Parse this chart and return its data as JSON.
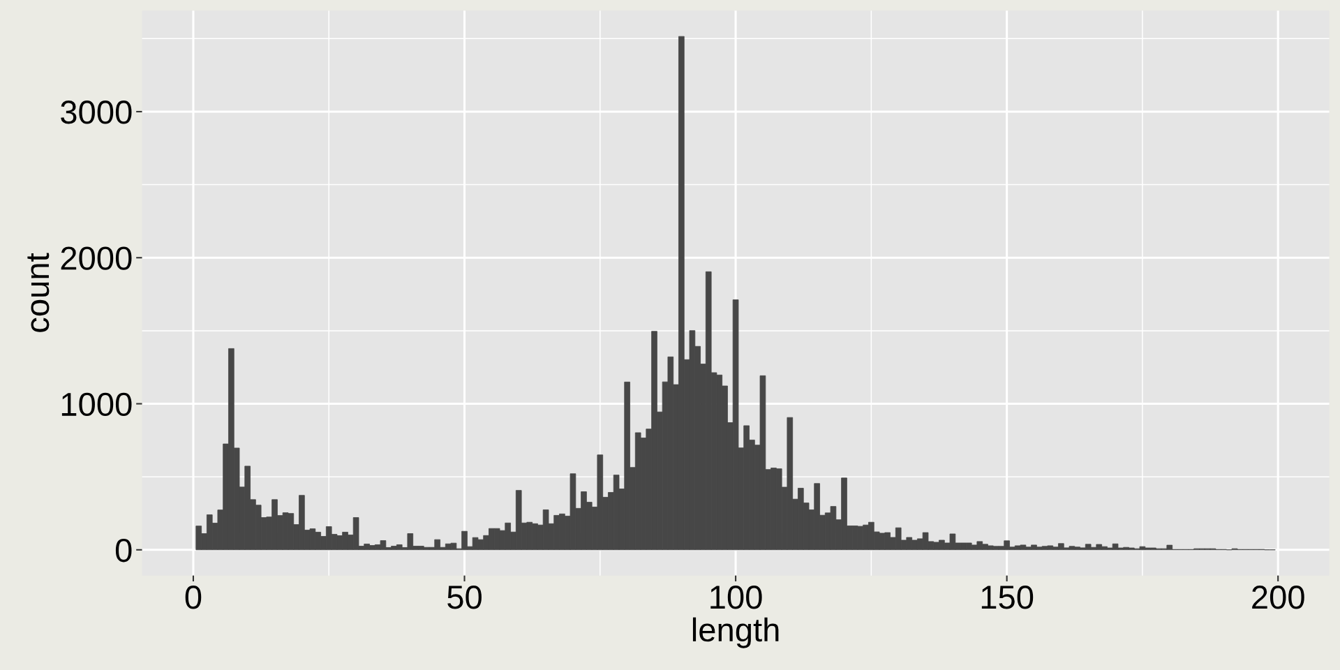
{
  "chart_data": {
    "type": "histogram",
    "xlabel": "length",
    "ylabel": "count",
    "color": "#474747",
    "bins": [
      0.5,
      1.5,
      2.5,
      3.5,
      4.5,
      5.5,
      6.5,
      7.5,
      8.5,
      9.5,
      10.5,
      11.5,
      12.5,
      13.5,
      14.5,
      15.5,
      16.5,
      17.5,
      18.5,
      19.5,
      20.5,
      21.5,
      22.5,
      23.5,
      24.5,
      25.5,
      26.5,
      27.5,
      28.5,
      29.5,
      30.5,
      31.5,
      32.5,
      33.5,
      34.5,
      35.5,
      36.5,
      37.5,
      38.5,
      39.5,
      40.5,
      41.5,
      42.5,
      43.5,
      44.5,
      45.5,
      46.5,
      47.5,
      48.5,
      49.5,
      50.5,
      51.5,
      52.5,
      53.5,
      54.5,
      55.5,
      56.5,
      57.5,
      58.5,
      59.5,
      60.5,
      61.5,
      62.5,
      63.5,
      64.5,
      65.5,
      66.5,
      67.5,
      68.5,
      69.5,
      70.5,
      71.5,
      72.5,
      73.5,
      74.5,
      75.5,
      76.5,
      77.5,
      78.5,
      79.5,
      80.5,
      81.5,
      82.5,
      83.5,
      84.5,
      85.5,
      86.5,
      87.5,
      88.5,
      89.5,
      90.5,
      91.5,
      92.5,
      93.5,
      94.5,
      95.5,
      96.5,
      97.5,
      98.5,
      99.5,
      100.5,
      101.5,
      102.5,
      103.5,
      104.5,
      105.5,
      106.5,
      107.5,
      108.5,
      109.5,
      110.5,
      111.5,
      112.5,
      113.5,
      114.5,
      115.5,
      116.5,
      117.5,
      118.5,
      119.5,
      120.5,
      121.5,
      122.5,
      123.5,
      124.5,
      125.5,
      126.5,
      127.5,
      128.5,
      129.5,
      130.5,
      131.5,
      132.5,
      133.5,
      134.5,
      135.5,
      136.5,
      137.5,
      138.5,
      139.5,
      140.5,
      141.5,
      142.5,
      143.5,
      144.5,
      145.5,
      146.5,
      147.5,
      148.5,
      149.5,
      150.5,
      151.5,
      152.5,
      153.5,
      154.5,
      155.5,
      156.5,
      157.5,
      158.5,
      159.5,
      160.5,
      161.5,
      162.5,
      163.5,
      164.5,
      165.5,
      166.5,
      167.5,
      168.5,
      169.5,
      170.5,
      171.5,
      172.5,
      173.5,
      174.5,
      175.5,
      176.5,
      177.5,
      178.5,
      179.5,
      180.5,
      181.5,
      182.5,
      183.5,
      184.5,
      185.5,
      186.5,
      187.5,
      188.5,
      189.5,
      190.5,
      191.5,
      192.5,
      193.5,
      194.5,
      195.5,
      196.5,
      197.5,
      198.5,
      199.5
    ],
    "values": [
      163,
      111,
      240,
      183,
      273,
      725,
      1378,
      697,
      430,
      573,
      344,
      306,
      221,
      225,
      344,
      235,
      254,
      249,
      173,
      373,
      135,
      144,
      121,
      92,
      159,
      106,
      97,
      121,
      102,
      221,
      25,
      40,
      30,
      35,
      63,
      16,
      25,
      35,
      16,
      111,
      25,
      25,
      17,
      17,
      70,
      17,
      41,
      46,
      8,
      127,
      22,
      84,
      70,
      98,
      146,
      146,
      132,
      184,
      122,
      407,
      184,
      189,
      179,
      170,
      274,
      179,
      236,
      246,
      231,
      521,
      284,
      398,
      326,
      293,
      650,
      360,
      393,
      512,
      417,
      1149,
      564,
      802,
      766,
      827,
      1496,
      944,
      1150,
      1321,
      1131,
      3515,
      1302,
      1501,
      1393,
      1272,
      1904,
      1213,
      1197,
      1122,
      871,
      1712,
      698,
      850,
      752,
      717,
      1192,
      550,
      560,
      555,
      429,
      906,
      347,
      422,
      321,
      274,
      454,
      237,
      253,
      297,
      206,
      492,
      164,
      164,
      161,
      170,
      189,
      123,
      114,
      118,
      85,
      151,
      66,
      85,
      66,
      76,
      118,
      57,
      52,
      66,
      47,
      109,
      47,
      47,
      47,
      33,
      57,
      38,
      28,
      24,
      24,
      62,
      19,
      28,
      33,
      19,
      33,
      19,
      24,
      28,
      19,
      43,
      14,
      24,
      19,
      14,
      38,
      17,
      37,
      22,
      13,
      41,
      13,
      17,
      13,
      8,
      22,
      13,
      13,
      8,
      8,
      32,
      3,
      3,
      3,
      3,
      8,
      8,
      8,
      8,
      3,
      3,
      0,
      8,
      3,
      3,
      3,
      3,
      3,
      0,
      0
    ],
    "xlim": [
      -9.45,
      209.45
    ],
    "xticks": [
      0,
      50,
      100,
      150,
      200
    ],
    "ylim": [
      -176,
      3691
    ],
    "yticks": [
      0,
      1000,
      2000,
      3000
    ],
    "grid": true
  }
}
